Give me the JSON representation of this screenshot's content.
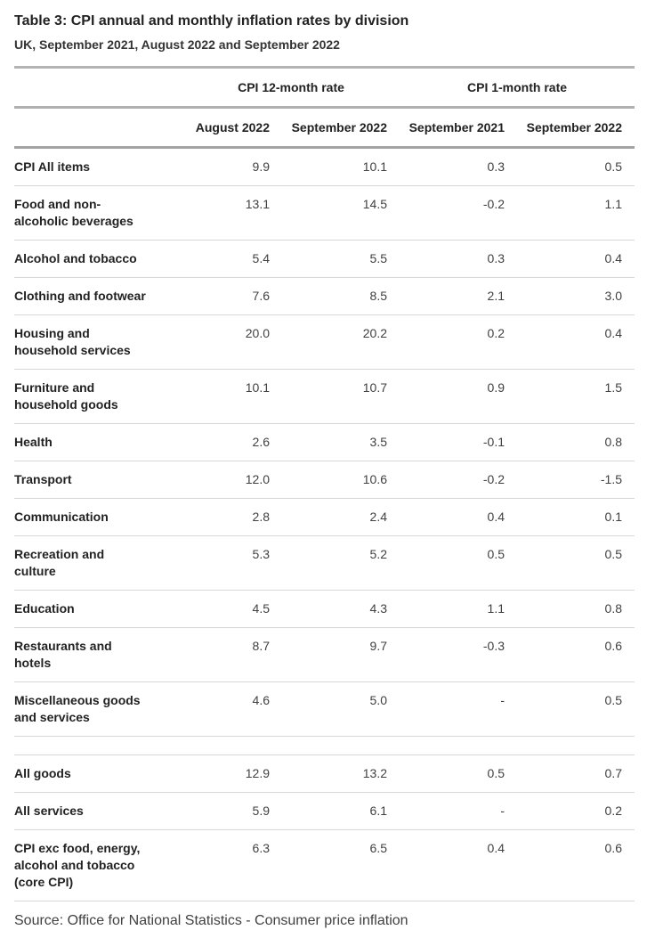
{
  "page": {
    "title": "Table 3: CPI annual and monthly inflation rates by division",
    "subtitle": "UK, September 2021, August 2022 and September 2022",
    "source": "Source: Office for National Statistics - Consumer price inflation"
  },
  "table": {
    "group_headers": [
      {
        "label": "CPI 12-month rate"
      },
      {
        "label": "CPI 1-month rate"
      }
    ],
    "column_headers": [
      "August 2022",
      "September 2022",
      "September 2021",
      "September 2022"
    ],
    "rows": [
      {
        "label": "CPI All items",
        "values": [
          "9.9",
          "10.1",
          "0.3",
          "0.5"
        ]
      },
      {
        "label": "Food and non-alcoholic beverages",
        "values": [
          "13.1",
          "14.5",
          "-0.2",
          "1.1"
        ]
      },
      {
        "label": "Alcohol and tobacco",
        "values": [
          "5.4",
          "5.5",
          "0.3",
          "0.4"
        ]
      },
      {
        "label": "Clothing and footwear",
        "values": [
          "7.6",
          "8.5",
          "2.1",
          "3.0"
        ]
      },
      {
        "label": "Housing and household services",
        "values": [
          "20.0",
          "20.2",
          "0.2",
          "0.4"
        ]
      },
      {
        "label": "Furniture and household goods",
        "values": [
          "10.1",
          "10.7",
          "0.9",
          "1.5"
        ]
      },
      {
        "label": "Health",
        "values": [
          "2.6",
          "3.5",
          "-0.1",
          "0.8"
        ]
      },
      {
        "label": "Transport",
        "values": [
          "12.0",
          "10.6",
          "-0.2",
          "-1.5"
        ]
      },
      {
        "label": "Communication",
        "values": [
          "2.8",
          "2.4",
          "0.4",
          "0.1"
        ]
      },
      {
        "label": "Recreation and culture",
        "values": [
          "5.3",
          "5.2",
          "0.5",
          "0.5"
        ]
      },
      {
        "label": "Education",
        "values": [
          "4.5",
          "4.3",
          "1.1",
          "0.8"
        ]
      },
      {
        "label": "Restaurants and hotels",
        "values": [
          "8.7",
          "9.7",
          "-0.3",
          "0.6"
        ]
      },
      {
        "label": "Miscellaneous goods and services",
        "values": [
          "4.6",
          "5.0",
          "-",
          "0.5"
        ]
      },
      {
        "spacer": true,
        "label": "",
        "values": [
          "",
          "",
          "",
          ""
        ]
      },
      {
        "label": "All goods",
        "values": [
          "12.9",
          "13.2",
          "0.5",
          "0.7"
        ]
      },
      {
        "label": "All services",
        "values": [
          "5.9",
          "6.1",
          "-",
          "0.2"
        ]
      },
      {
        "label": "CPI exc food, energy, alcohol and tobacco (core CPI)",
        "values": [
          "6.3",
          "6.5",
          "0.4",
          "0.6"
        ]
      }
    ]
  },
  "chart_data": {
    "type": "table",
    "title": "Table 3: CPI annual and monthly inflation rates by division",
    "subtitle": "UK, September 2021, August 2022 and September 2022",
    "column_groups": [
      {
        "label": "CPI 12-month rate",
        "columns": [
          "August 2022",
          "September 2022"
        ]
      },
      {
        "label": "CPI 1-month rate",
        "columns": [
          "September 2021",
          "September 2022"
        ]
      }
    ],
    "columns": [
      "August 2022",
      "September 2022",
      "September 2021",
      "September 2022"
    ],
    "rows": [
      {
        "division": "CPI All items",
        "cpi_12m_aug2022": 9.9,
        "cpi_12m_sep2022": 10.1,
        "cpi_1m_sep2021": 0.3,
        "cpi_1m_sep2022": 0.5
      },
      {
        "division": "Food and non-alcoholic beverages",
        "cpi_12m_aug2022": 13.1,
        "cpi_12m_sep2022": 14.5,
        "cpi_1m_sep2021": -0.2,
        "cpi_1m_sep2022": 1.1
      },
      {
        "division": "Alcohol and tobacco",
        "cpi_12m_aug2022": 5.4,
        "cpi_12m_sep2022": 5.5,
        "cpi_1m_sep2021": 0.3,
        "cpi_1m_sep2022": 0.4
      },
      {
        "division": "Clothing and footwear",
        "cpi_12m_aug2022": 7.6,
        "cpi_12m_sep2022": 8.5,
        "cpi_1m_sep2021": 2.1,
        "cpi_1m_sep2022": 3.0
      },
      {
        "division": "Housing and household services",
        "cpi_12m_aug2022": 20.0,
        "cpi_12m_sep2022": 20.2,
        "cpi_1m_sep2021": 0.2,
        "cpi_1m_sep2022": 0.4
      },
      {
        "division": "Furniture and household goods",
        "cpi_12m_aug2022": 10.1,
        "cpi_12m_sep2022": 10.7,
        "cpi_1m_sep2021": 0.9,
        "cpi_1m_sep2022": 1.5
      },
      {
        "division": "Health",
        "cpi_12m_aug2022": 2.6,
        "cpi_12m_sep2022": 3.5,
        "cpi_1m_sep2021": -0.1,
        "cpi_1m_sep2022": 0.8
      },
      {
        "division": "Transport",
        "cpi_12m_aug2022": 12.0,
        "cpi_12m_sep2022": 10.6,
        "cpi_1m_sep2021": -0.2,
        "cpi_1m_sep2022": -1.5
      },
      {
        "division": "Communication",
        "cpi_12m_aug2022": 2.8,
        "cpi_12m_sep2022": 2.4,
        "cpi_1m_sep2021": 0.4,
        "cpi_1m_sep2022": 0.1
      },
      {
        "division": "Recreation and culture",
        "cpi_12m_aug2022": 5.3,
        "cpi_12m_sep2022": 5.2,
        "cpi_1m_sep2021": 0.5,
        "cpi_1m_sep2022": 0.5
      },
      {
        "division": "Education",
        "cpi_12m_aug2022": 4.5,
        "cpi_12m_sep2022": 4.3,
        "cpi_1m_sep2021": 1.1,
        "cpi_1m_sep2022": 0.8
      },
      {
        "division": "Restaurants and hotels",
        "cpi_12m_aug2022": 8.7,
        "cpi_12m_sep2022": 9.7,
        "cpi_1m_sep2021": -0.3,
        "cpi_1m_sep2022": 0.6
      },
      {
        "division": "Miscellaneous goods and services",
        "cpi_12m_aug2022": 4.6,
        "cpi_12m_sep2022": 5.0,
        "cpi_1m_sep2021": "-",
        "cpi_1m_sep2022": 0.5
      },
      {
        "division": "All goods",
        "cpi_12m_aug2022": 12.9,
        "cpi_12m_sep2022": 13.2,
        "cpi_1m_sep2021": 0.5,
        "cpi_1m_sep2022": 0.7
      },
      {
        "division": "All services",
        "cpi_12m_aug2022": 5.9,
        "cpi_12m_sep2022": 6.1,
        "cpi_1m_sep2021": "-",
        "cpi_1m_sep2022": 0.2
      },
      {
        "division": "CPI exc food, energy, alcohol and tobacco (core CPI)",
        "cpi_12m_aug2022": 6.3,
        "cpi_12m_sep2022": 6.5,
        "cpi_1m_sep2021": 0.4,
        "cpi_1m_sep2022": 0.6
      }
    ],
    "source": "Source: Office for National Statistics - Consumer price inflation",
    "colors": {
      "heading_text": "#222222",
      "value_text": "#414042",
      "heavy_rule": "#a9a9a9",
      "light_rule": "#d8d8d8",
      "background": "#ffffff"
    }
  }
}
